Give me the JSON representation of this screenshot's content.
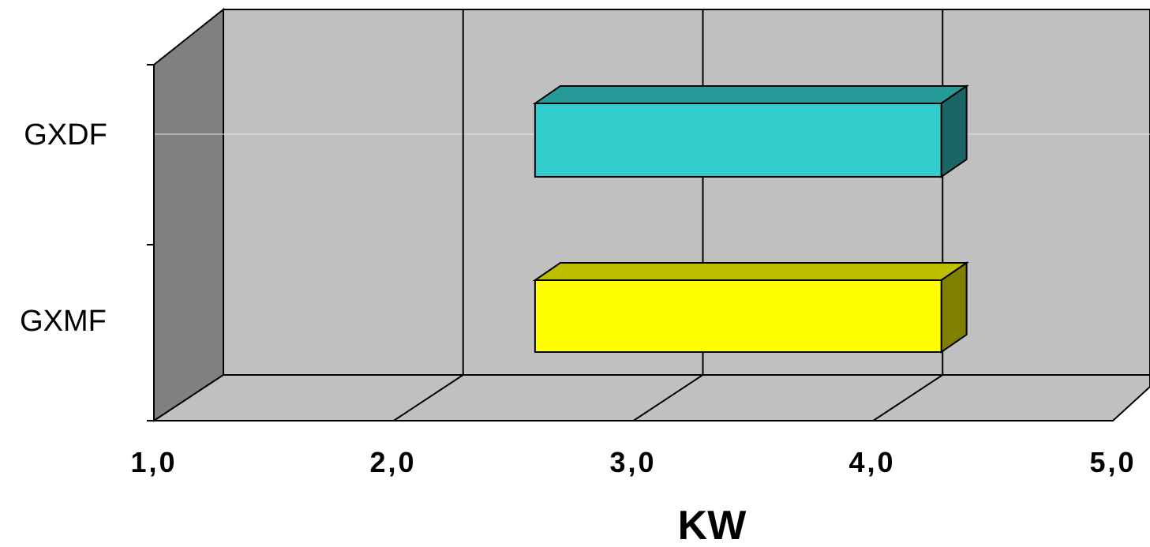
{
  "chart_data": {
    "type": "bar",
    "orientation": "horizontal",
    "style": "3d",
    "title": "",
    "xlabel": "KW",
    "ylabel": "",
    "categories": [
      "GXDF",
      "GXMF"
    ],
    "series": [
      {
        "values": [
          {
            "start": 2.3,
            "end": 4.1
          },
          {
            "start": 2.3,
            "end": 4.1
          }
        ]
      }
    ],
    "colors": {
      "GXDF": "#33CCCC",
      "GXMF": "#FFFF00"
    },
    "xlim": [
      1.0,
      5.0
    ],
    "x_ticks": [
      "1,0",
      "2,0",
      "3,0",
      "4,0",
      "5,0"
    ],
    "grid": true,
    "legend": "none"
  }
}
